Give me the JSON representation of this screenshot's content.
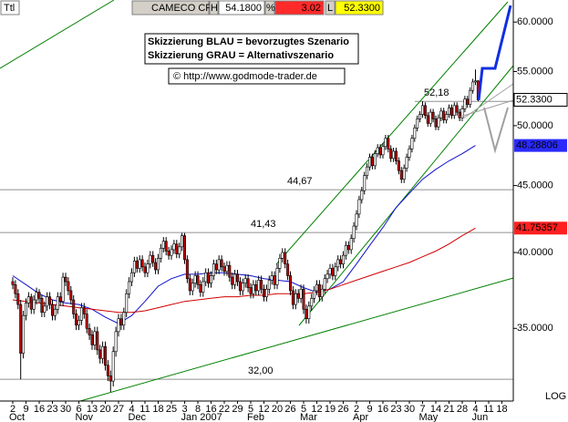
{
  "header": {
    "symbol_box": "Ttl",
    "name": "CAMECO CP",
    "high_label": "H",
    "high": "54.1800",
    "pct_label": "%",
    "change": "3.02",
    "last_flag": "L",
    "last": "52.3300"
  },
  "chart_data": {
    "type": "candlestick",
    "log_scale": true,
    "notes": [
      "Skizzierung BLAU = bevorzugtes Szenario",
      "Skizzierung GRAU = Alternativszenario"
    ],
    "source": "© http://www.godmode-trader.de",
    "scale_label": "LOG",
    "x_ticks": [
      "2",
      "9",
      "16",
      "23",
      "30",
      "6",
      "13",
      "20",
      "27",
      "4",
      "11",
      "18",
      "25",
      "3",
      "8",
      "16",
      "22",
      "29",
      "5",
      "12",
      "20",
      "26",
      "5",
      "12",
      "19",
      "26",
      "2",
      "9",
      "16",
      "23",
      "30",
      "7",
      "14",
      "21",
      "28",
      "4",
      "11",
      "18"
    ],
    "months": [
      "Oct",
      "Nov",
      "Dec",
      "Jan 2007",
      "Feb",
      "Mar",
      "Apr",
      "May",
      "Jun"
    ],
    "ylim": [
      30.8,
      60.6
    ],
    "yticks": [
      {
        "value": 35,
        "label": "35.0000"
      },
      {
        "value": 40,
        "label": "40.0000"
      },
      {
        "value": 45,
        "label": "45.0000"
      },
      {
        "value": 50,
        "label": "50.0000"
      },
      {
        "value": 55,
        "label": "55.0000"
      },
      {
        "value": 60,
        "label": "60.0000"
      }
    ],
    "up_color": "#ffffff",
    "down_color": "#c00000",
    "last_price_label": "52.3300",
    "levels": [
      {
        "value": 52.18,
        "label": "52,18"
      },
      {
        "value": 44.67,
        "label": "44,67"
      },
      {
        "value": 41.43,
        "label": "41,43"
      },
      {
        "value": 32.0,
        "label": "32,00"
      }
    ],
    "ohlc": [
      [
        38.0,
        38.3,
        37.5,
        37.8
      ],
      [
        37.8,
        38.1,
        36.9,
        37.2
      ],
      [
        37.2,
        37.5,
        36.2,
        36.5
      ],
      [
        36.5,
        36.8,
        32.0,
        33.5
      ],
      [
        33.5,
        36.1,
        33.2,
        35.8
      ],
      [
        35.8,
        36.9,
        35.5,
        36.6
      ],
      [
        36.6,
        37.3,
        36.3,
        37.0
      ],
      [
        37.0,
        37.2,
        35.9,
        36.2
      ],
      [
        36.2,
        37.1,
        35.9,
        36.8
      ],
      [
        36.8,
        37.6,
        36.5,
        37.3
      ],
      [
        37.3,
        37.5,
        36.6,
        36.9
      ],
      [
        36.9,
        37.1,
        35.7,
        36.0
      ],
      [
        36.0,
        36.7,
        35.7,
        36.4
      ],
      [
        36.4,
        37.3,
        36.1,
        37.0
      ],
      [
        37.0,
        37.3,
        36.2,
        36.5
      ],
      [
        36.5,
        36.8,
        35.5,
        35.8
      ],
      [
        35.8,
        36.5,
        35.5,
        36.2
      ],
      [
        36.2,
        37.3,
        35.9,
        37.0
      ],
      [
        37.0,
        37.3,
        36.4,
        36.7
      ],
      [
        36.7,
        38.6,
        36.4,
        38.3
      ],
      [
        38.3,
        38.6,
        37.7,
        38.0
      ],
      [
        38.0,
        38.3,
        37.1,
        37.4
      ],
      [
        37.4,
        37.7,
        36.5,
        36.8
      ],
      [
        36.8,
        37.1,
        35.6,
        35.9
      ],
      [
        35.9,
        36.2,
        34.9,
        35.2
      ],
      [
        35.2,
        35.8,
        34.9,
        35.5
      ],
      [
        35.5,
        36.6,
        35.2,
        36.3
      ],
      [
        36.3,
        36.6,
        35.6,
        35.9
      ],
      [
        35.9,
        36.2,
        34.7,
        35.0
      ],
      [
        35.0,
        35.3,
        34.3,
        34.6
      ],
      [
        34.6,
        34.9,
        33.7,
        34.0
      ],
      [
        34.0,
        35.1,
        33.7,
        34.8
      ],
      [
        34.8,
        35.1,
        33.4,
        33.7
      ],
      [
        33.7,
        34.0,
        32.9,
        33.2
      ],
      [
        33.2,
        34.2,
        32.9,
        33.9
      ],
      [
        33.9,
        34.2,
        32.5,
        32.8
      ],
      [
        32.8,
        33.1,
        31.9,
        32.2
      ],
      [
        32.2,
        32.5,
        31.3,
        31.9
      ],
      [
        31.9,
        33.9,
        31.6,
        33.6
      ],
      [
        33.6,
        35.1,
        33.3,
        34.8
      ],
      [
        34.8,
        35.9,
        34.5,
        35.6
      ],
      [
        35.6,
        35.9,
        34.9,
        35.2
      ],
      [
        35.2,
        36.3,
        34.9,
        36.0
      ],
      [
        36.0,
        37.5,
        35.7,
        37.2
      ],
      [
        37.2,
        38.3,
        36.9,
        38.0
      ],
      [
        38.0,
        38.9,
        37.7,
        38.6
      ],
      [
        38.6,
        39.7,
        38.3,
        39.4
      ],
      [
        39.4,
        39.7,
        38.6,
        38.9
      ],
      [
        38.9,
        39.8,
        38.6,
        39.5
      ],
      [
        39.5,
        39.8,
        38.7,
        39.0
      ],
      [
        39.0,
        39.3,
        38.3,
        38.6
      ],
      [
        38.6,
        39.5,
        38.3,
        39.2
      ],
      [
        39.2,
        40.1,
        38.9,
        39.8
      ],
      [
        39.8,
        40.1,
        39.0,
        39.3
      ],
      [
        39.3,
        39.6,
        38.5,
        38.8
      ],
      [
        38.8,
        39.9,
        38.5,
        39.6
      ],
      [
        39.6,
        40.6,
        39.3,
        40.3
      ],
      [
        40.3,
        41.1,
        40.0,
        40.8
      ],
      [
        40.8,
        41.1,
        39.8,
        40.1
      ],
      [
        40.1,
        40.4,
        39.5,
        39.8
      ],
      [
        39.8,
        40.5,
        39.5,
        40.2
      ],
      [
        40.2,
        40.9,
        39.9,
        40.6
      ],
      [
        40.6,
        40.9,
        39.6,
        39.9
      ],
      [
        39.9,
        40.7,
        39.6,
        40.4
      ],
      [
        40.4,
        41.4,
        40.1,
        41.2
      ],
      [
        41.2,
        41.4,
        39.2,
        39.5
      ],
      [
        39.5,
        39.8,
        37.9,
        38.2
      ],
      [
        38.2,
        38.5,
        37.1,
        37.4
      ],
      [
        37.4,
        38.2,
        37.1,
        37.9
      ],
      [
        37.9,
        38.7,
        37.6,
        38.4
      ],
      [
        38.4,
        38.7,
        37.5,
        37.8
      ],
      [
        37.8,
        38.1,
        37.0,
        37.3
      ],
      [
        37.3,
        38.3,
        37.0,
        38.0
      ],
      [
        38.0,
        38.9,
        37.7,
        38.6
      ],
      [
        38.6,
        38.9,
        37.6,
        37.9
      ],
      [
        37.9,
        38.7,
        37.6,
        38.4
      ],
      [
        38.4,
        39.5,
        38.1,
        39.2
      ],
      [
        39.2,
        39.5,
        38.5,
        38.8
      ],
      [
        38.8,
        39.8,
        38.5,
        39.5
      ],
      [
        39.5,
        39.8,
        38.7,
        39.0
      ],
      [
        39.0,
        39.3,
        38.4,
        38.7
      ],
      [
        38.7,
        39.4,
        38.4,
        39.1
      ],
      [
        39.1,
        39.4,
        38.0,
        38.3
      ],
      [
        38.3,
        38.6,
        37.5,
        37.8
      ],
      [
        37.8,
        38.8,
        37.5,
        38.5
      ],
      [
        38.5,
        38.8,
        37.7,
        38.0
      ],
      [
        38.0,
        38.3,
        37.1,
        37.4
      ],
      [
        37.4,
        38.2,
        37.1,
        37.9
      ],
      [
        37.9,
        38.5,
        37.6,
        38.2
      ],
      [
        38.2,
        38.5,
        37.3,
        37.6
      ],
      [
        37.6,
        37.9,
        36.9,
        37.2
      ],
      [
        37.2,
        38.1,
        36.9,
        37.8
      ],
      [
        37.8,
        38.1,
        37.1,
        37.4
      ],
      [
        37.4,
        38.4,
        37.1,
        38.1
      ],
      [
        38.1,
        38.4,
        37.2,
        37.5
      ],
      [
        37.5,
        37.8,
        36.7,
        37.0
      ],
      [
        37.0,
        37.8,
        36.7,
        37.5
      ],
      [
        37.5,
        38.4,
        37.2,
        38.1
      ],
      [
        38.1,
        38.7,
        37.8,
        38.4
      ],
      [
        38.4,
        38.7,
        37.5,
        37.8
      ],
      [
        37.8,
        39.2,
        37.5,
        38.9
      ],
      [
        38.9,
        39.9,
        38.6,
        39.6
      ],
      [
        39.6,
        40.3,
        39.3,
        40.0
      ],
      [
        40.0,
        40.3,
        38.9,
        39.2
      ],
      [
        39.2,
        39.5,
        38.1,
        38.4
      ],
      [
        38.4,
        38.7,
        37.1,
        37.4
      ],
      [
        37.4,
        37.7,
        36.2,
        36.5
      ],
      [
        36.5,
        37.5,
        36.2,
        37.2
      ],
      [
        37.2,
        37.5,
        36.6,
        36.9
      ],
      [
        36.9,
        37.8,
        36.6,
        37.5
      ],
      [
        37.5,
        37.8,
        35.9,
        36.2
      ],
      [
        36.2,
        36.5,
        35.3,
        35.6
      ],
      [
        35.6,
        36.7,
        35.3,
        36.4
      ],
      [
        36.4,
        37.2,
        36.1,
        36.9
      ],
      [
        36.9,
        37.7,
        36.6,
        37.4
      ],
      [
        37.4,
        38.1,
        37.1,
        37.8
      ],
      [
        37.8,
        38.1,
        36.7,
        37.0
      ],
      [
        37.0,
        37.8,
        36.7,
        37.5
      ],
      [
        37.5,
        38.5,
        37.2,
        38.2
      ],
      [
        38.2,
        38.8,
        37.9,
        38.5
      ],
      [
        38.5,
        39.2,
        38.2,
        38.9
      ],
      [
        38.9,
        39.2,
        38.1,
        38.4
      ],
      [
        38.4,
        39.3,
        38.1,
        39.0
      ],
      [
        39.0,
        39.8,
        38.7,
        39.5
      ],
      [
        39.5,
        39.8,
        38.9,
        39.2
      ],
      [
        39.2,
        40.1,
        38.9,
        39.8
      ],
      [
        39.8,
        40.8,
        39.5,
        40.5
      ],
      [
        40.5,
        40.8,
        39.9,
        40.2
      ],
      [
        40.2,
        41.3,
        39.9,
        41.0
      ],
      [
        41.0,
        42.2,
        40.7,
        41.9
      ],
      [
        41.9,
        43.1,
        41.6,
        42.8
      ],
      [
        42.8,
        44.2,
        42.5,
        43.9
      ],
      [
        43.9,
        44.9,
        43.6,
        44.6
      ],
      [
        44.6,
        46.1,
        44.3,
        45.8
      ],
      [
        45.8,
        46.8,
        45.5,
        46.5
      ],
      [
        46.5,
        47.6,
        46.2,
        47.3
      ],
      [
        47.3,
        47.6,
        46.3,
        46.6
      ],
      [
        46.6,
        47.9,
        46.3,
        47.6
      ],
      [
        47.6,
        48.4,
        47.3,
        48.1
      ],
      [
        48.1,
        48.4,
        47.2,
        47.5
      ],
      [
        47.5,
        48.5,
        47.2,
        48.2
      ],
      [
        48.2,
        49.2,
        47.9,
        48.9
      ],
      [
        48.9,
        49.2,
        47.7,
        48.0
      ],
      [
        48.0,
        48.3,
        46.9,
        47.2
      ],
      [
        47.2,
        48.1,
        46.9,
        47.8
      ],
      [
        47.8,
        48.1,
        46.7,
        47.0
      ],
      [
        47.0,
        47.3,
        45.9,
        46.2
      ],
      [
        46.2,
        46.5,
        45.2,
        45.5
      ],
      [
        45.5,
        46.7,
        45.2,
        46.4
      ],
      [
        46.4,
        47.6,
        46.1,
        47.3
      ],
      [
        47.3,
        48.3,
        47.0,
        48.0
      ],
      [
        48.0,
        49.2,
        47.7,
        48.9
      ],
      [
        48.9,
        50.1,
        48.6,
        49.8
      ],
      [
        49.8,
        50.9,
        49.5,
        50.6
      ],
      [
        50.6,
        51.3,
        50.3,
        51.0
      ],
      [
        51.0,
        52.2,
        50.7,
        51.8
      ],
      [
        51.8,
        52.1,
        50.6,
        50.9
      ],
      [
        50.9,
        51.2,
        49.9,
        50.2
      ],
      [
        50.2,
        51.5,
        49.9,
        51.2
      ],
      [
        51.2,
        51.5,
        50.3,
        50.6
      ],
      [
        50.6,
        50.9,
        49.6,
        49.9
      ],
      [
        49.9,
        51.0,
        49.6,
        50.7
      ],
      [
        50.7,
        51.6,
        50.4,
        51.3
      ],
      [
        51.3,
        51.6,
        50.2,
        50.5
      ],
      [
        50.5,
        51.3,
        50.2,
        51.0
      ],
      [
        51.0,
        51.9,
        50.7,
        51.6
      ],
      [
        51.6,
        51.9,
        50.6,
        50.9
      ],
      [
        50.9,
        52.1,
        50.6,
        51.8
      ],
      [
        51.8,
        52.1,
        50.9,
        51.2
      ],
      [
        51.2,
        51.5,
        50.4,
        50.7
      ],
      [
        50.7,
        51.8,
        50.4,
        51.5
      ],
      [
        51.5,
        52.7,
        51.2,
        52.4
      ],
      [
        52.4,
        52.7,
        51.6,
        51.9
      ],
      [
        51.9,
        53.5,
        51.6,
        53.2
      ],
      [
        53.2,
        54.3,
        52.9,
        54.0
      ],
      [
        54.0,
        55.2,
        53.7,
        54.1
      ],
      [
        54.1,
        54.18,
        52.2,
        52.33
      ]
    ],
    "series": [
      {
        "color": "#1010d0",
        "end_label": "48.28806",
        "label_bg": "#2a2aff",
        "values": [
          38.4,
          37.8,
          37.2,
          36.8,
          36.6,
          36.5,
          36.2,
          35.7,
          35.3,
          35.8,
          36.7,
          37.7,
          38.2,
          38.5,
          38.5,
          38.6,
          38.6,
          38.5,
          38.4,
          38.2,
          38.1,
          38.0,
          37.6,
          37.3,
          37.5,
          38.0,
          39.2,
          40.5,
          41.8,
          43.3,
          44.4,
          45.5,
          46.3,
          47.0,
          47.6,
          48.28806,
          null,
          null
        ]
      },
      {
        "color": "#d00000",
        "end_label": "41.75357",
        "label_bg": "#ff2020",
        "values": [
          36.8,
          36.7,
          36.6,
          36.5,
          36.4,
          36.3,
          36.2,
          36.1,
          36.0,
          36.0,
          36.1,
          36.3,
          36.5,
          36.7,
          36.8,
          36.9,
          37.0,
          37.0,
          37.1,
          37.1,
          37.2,
          37.2,
          37.2,
          37.3,
          37.5,
          37.8,
          38.1,
          38.4,
          38.7,
          39.0,
          39.3,
          39.7,
          40.1,
          40.6,
          41.2,
          41.75357,
          null,
          null
        ]
      }
    ]
  }
}
